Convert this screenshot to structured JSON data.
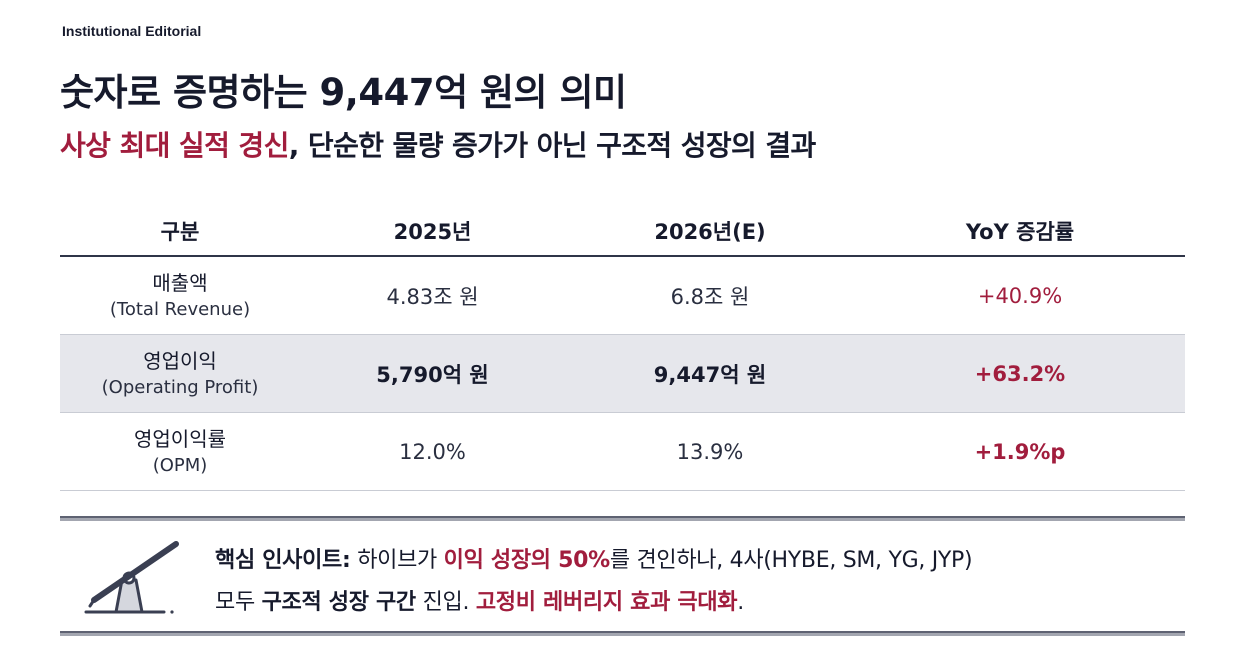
{
  "brand": "Institutional Editorial",
  "title": "숫자로 증명하는 9,447억 원의 의미",
  "subtitle": {
    "highlight": "사상 최대 실적 경신",
    "rest": ", 단순한 물량 증가가 아닌 구조적 성장의 결과"
  },
  "table": {
    "headers": [
      "구분",
      "2025년",
      "2026년(E)",
      "YoY 증감률"
    ],
    "rows": [
      {
        "label_ko": "매출액",
        "label_en": "(Total Revenue)",
        "v2025": "4.83조 원",
        "v2026": "6.8조 원",
        "yoy": "+40.9%"
      },
      {
        "label_ko": "영업이익",
        "label_en": "(Operating Profit)",
        "v2025": "5,790억 원",
        "v2026": "9,447억 원",
        "yoy": "+63.2%"
      },
      {
        "label_ko": "영업이익률",
        "label_en": "(OPM)",
        "v2025": "12.0%",
        "v2026": "13.9%",
        "yoy": "+1.9%p"
      }
    ]
  },
  "insight": {
    "icon": "lever-icon",
    "p1": "핵심 인사이트:",
    "p2": " 하이브가 ",
    "p3": "이익 성장의 50%",
    "p4": "를 견인하나, 4사(HYBE, SM, YG, JYP)",
    "p5": "모두 ",
    "p6": "구조적 성장 구간",
    "p7": " 진입. ",
    "p8": "고정비 레버리지 효과 극대화",
    "p9": "."
  },
  "colors": {
    "accent": "#a11d3d",
    "navy": "#161a2c",
    "row_shade": "#e6e7ec"
  }
}
